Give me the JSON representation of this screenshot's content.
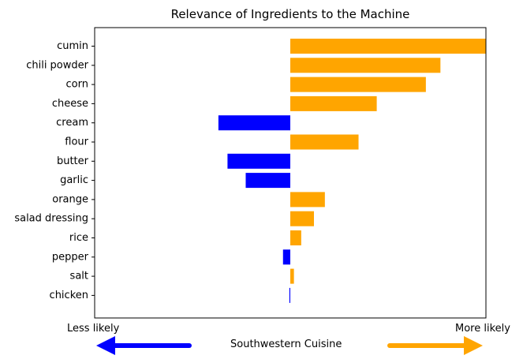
{
  "chart_data": {
    "type": "bar",
    "orientation": "horizontal",
    "title": "Relevance of Ingredients to the Machine",
    "categories": [
      "cumin",
      "chili powder",
      "corn",
      "cheese",
      "cream",
      "flour",
      "butter",
      "garlic",
      "orange",
      "salad dressing",
      "rice",
      "pepper",
      "salt",
      "chicken"
    ],
    "values": [
      0.215,
      0.165,
      0.149,
      0.095,
      -0.079,
      0.075,
      -0.069,
      -0.049,
      0.038,
      0.026,
      0.012,
      -0.008,
      0.004,
      -0.001
    ],
    "xlim": [
      -0.215,
      0.215
    ],
    "colors": {
      "positive": "#FFA500",
      "negative": "#0000FF"
    },
    "grid": false,
    "x_end_labels": {
      "left": "Less likely",
      "right": "More likely"
    },
    "caption": "Southwestern Cuisine"
  }
}
